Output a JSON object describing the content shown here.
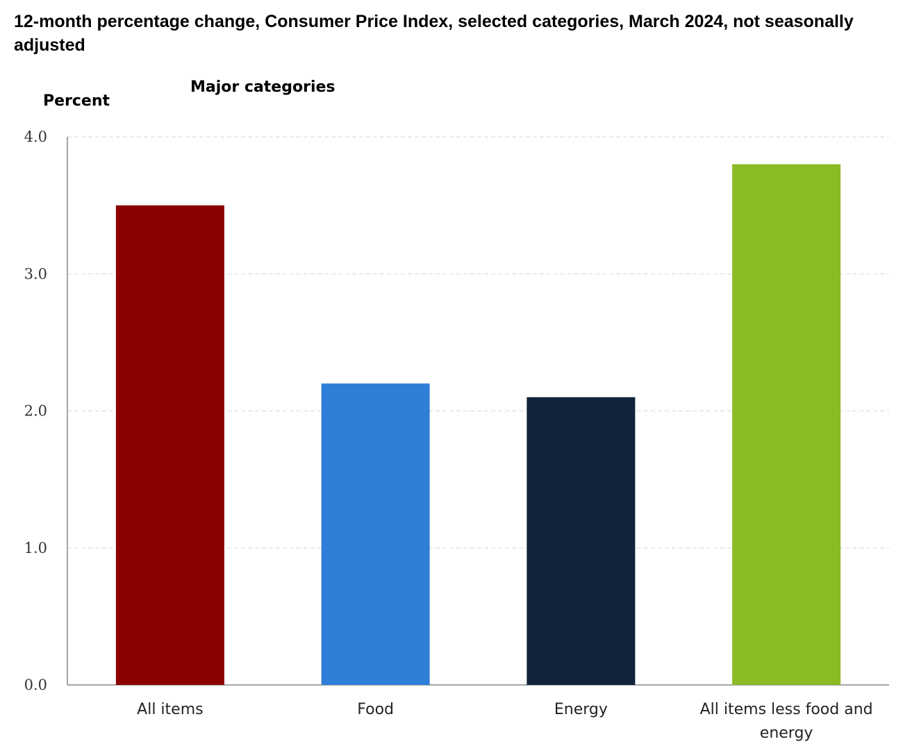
{
  "chart_data": {
    "type": "bar",
    "title": "12-month percentage change, Consumer Price Index, selected categories, March 2024, not seasonally adjusted",
    "subtitle": "Major categories",
    "xlabel": "",
    "ylabel": "Percent",
    "ylim": [
      0,
      4
    ],
    "yticks": [
      {
        "value": 0,
        "label": "0.0"
      },
      {
        "value": 1,
        "label": "1.0"
      },
      {
        "value": 2,
        "label": "2.0"
      },
      {
        "value": 3,
        "label": "3.0"
      },
      {
        "value": 4,
        "label": "4.0"
      }
    ],
    "categories": [
      [
        "All items"
      ],
      [
        "Food"
      ],
      [
        "Energy"
      ],
      [
        "All items less food and",
        "energy"
      ]
    ],
    "values": [
      3.5,
      2.2,
      2.1,
      3.8
    ],
    "colors": [
      "#8b0000",
      "#2f7fd8",
      "#10233a",
      "#8bbb24"
    ],
    "grid": true,
    "legend": "none"
  }
}
